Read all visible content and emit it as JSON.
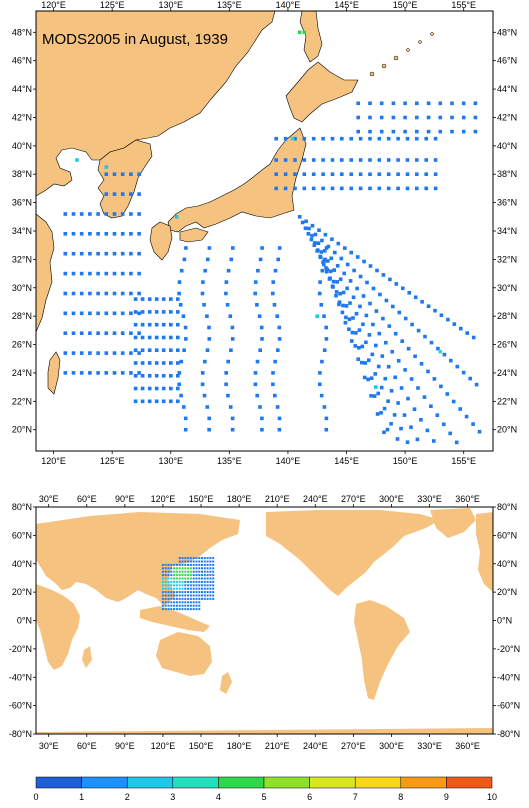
{
  "title": "MODS2005 in August, 1939",
  "colors": {
    "land": "#f5c27f",
    "ocean": "#ffffff",
    "frame": "#000000"
  },
  "map_top": {
    "lon_range": [
      118.5,
      157.5
    ],
    "lat_range": [
      18.5,
      49.5
    ],
    "lon_ticks": [
      "120°E",
      "125°E",
      "130°E",
      "135°E",
      "140°E",
      "145°E",
      "150°E",
      "155°E"
    ],
    "lat_ticks": [
      "48°N",
      "46°N",
      "44°N",
      "42°N",
      "40°N",
      "38°N",
      "36°N",
      "34°N",
      "32°N",
      "30°N",
      "28°N",
      "26°N",
      "24°N",
      "22°N",
      "20°N"
    ]
  },
  "map_bottom": {
    "lon_range": [
      20,
      380
    ],
    "lat_range": [
      -80,
      80
    ],
    "lon_ticks": [
      "30°E",
      "60°E",
      "90°E",
      "120°E",
      "150°E",
      "180°E",
      "210°E",
      "240°E",
      "270°E",
      "300°E",
      "330°E",
      "360°E"
    ],
    "lat_ticks": [
      "80°N",
      "60°N",
      "40°N",
      "20°N",
      "0°N",
      "-20°N",
      "-40°N",
      "-60°N",
      "-80°N"
    ]
  },
  "colorbar": {
    "labels": [
      "0",
      "1",
      "2",
      "3",
      "4",
      "5",
      "6",
      "7",
      "8",
      "9",
      "10"
    ],
    "colors": [
      "#1f5fd6",
      "#1e90ff",
      "#1fc8e8",
      "#20e0c0",
      "#2fd84a",
      "#8fe02a",
      "#d8e81e",
      "#f8d818",
      "#f89a18",
      "#f05a18"
    ]
  }
}
